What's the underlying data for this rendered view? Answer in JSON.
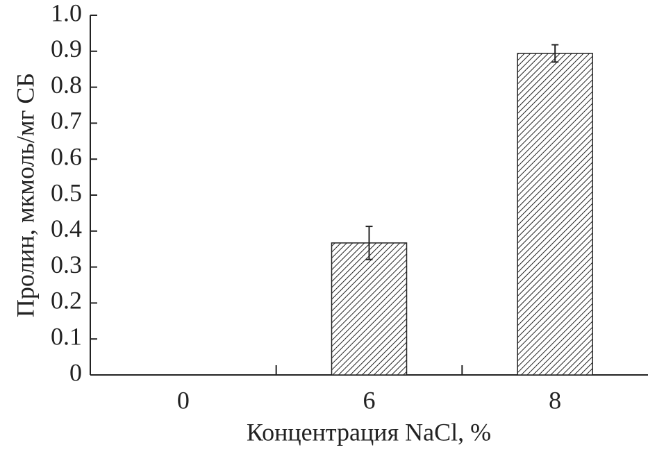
{
  "chart_data": {
    "type": "bar",
    "y_label": "Пролин, мкмоль/мг СБ",
    "x_label": "Концентрация NaCl, %",
    "categories": [
      "0",
      "6",
      "8"
    ],
    "values": [
      0,
      0.367,
      0.894
    ],
    "errors": [
      null,
      0.046,
      0.024
    ],
    "color": "#222222",
    "hatch": true,
    "ylim": [
      0,
      1
    ],
    "yticks": [
      0,
      0.1,
      0.2,
      0.3,
      0.4,
      0.5,
      0.6,
      0.7,
      0.8,
      0.9,
      {
        "value": 1,
        "label": "1.0"
      }
    ],
    "grid": false
  }
}
